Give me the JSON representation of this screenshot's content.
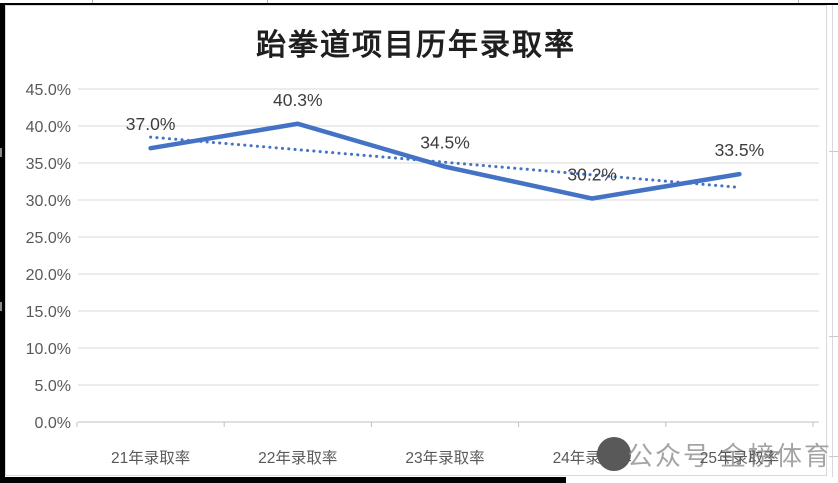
{
  "chart_data": {
    "type": "line",
    "title": "跆拳道项目历年录取率",
    "categories": [
      "21年录取率",
      "22年录取率",
      "23年录取率",
      "24年录取率",
      "25年录取率"
    ],
    "series": [
      {
        "name": "admission-rate",
        "style": "solid",
        "color": "#4472C4",
        "values": [
          37.0,
          40.3,
          34.5,
          30.2,
          33.5
        ],
        "data_labels": [
          "37.0%",
          "40.3%",
          "34.5%",
          "30.2%",
          "33.5%"
        ]
      },
      {
        "name": "linear-trendline",
        "style": "dotted",
        "color": "#4472C4",
        "values": [
          38.5,
          36.8,
          35.1,
          33.4,
          31.7
        ]
      }
    ],
    "y_axis": {
      "min": 0,
      "max": 45,
      "tick_values": [
        45,
        40,
        35,
        30,
        25,
        20,
        15,
        10,
        5,
        0
      ],
      "tick_labels": [
        "45.0%",
        "40.0%",
        "35.0%",
        "30.0%",
        "25.0%",
        "20.0%",
        "15.0%",
        "10.0%",
        "5.0%",
        "0.0%"
      ]
    },
    "grid": true,
    "legend": "none",
    "grid_color": "#d9d9d9",
    "axis_line_color": "#bfbfbf",
    "data_label_color": "#3d3d3d",
    "axis_text_color": "#595959"
  },
  "watermark": {
    "prefix": "公众号",
    "name": "金榜体育"
  }
}
